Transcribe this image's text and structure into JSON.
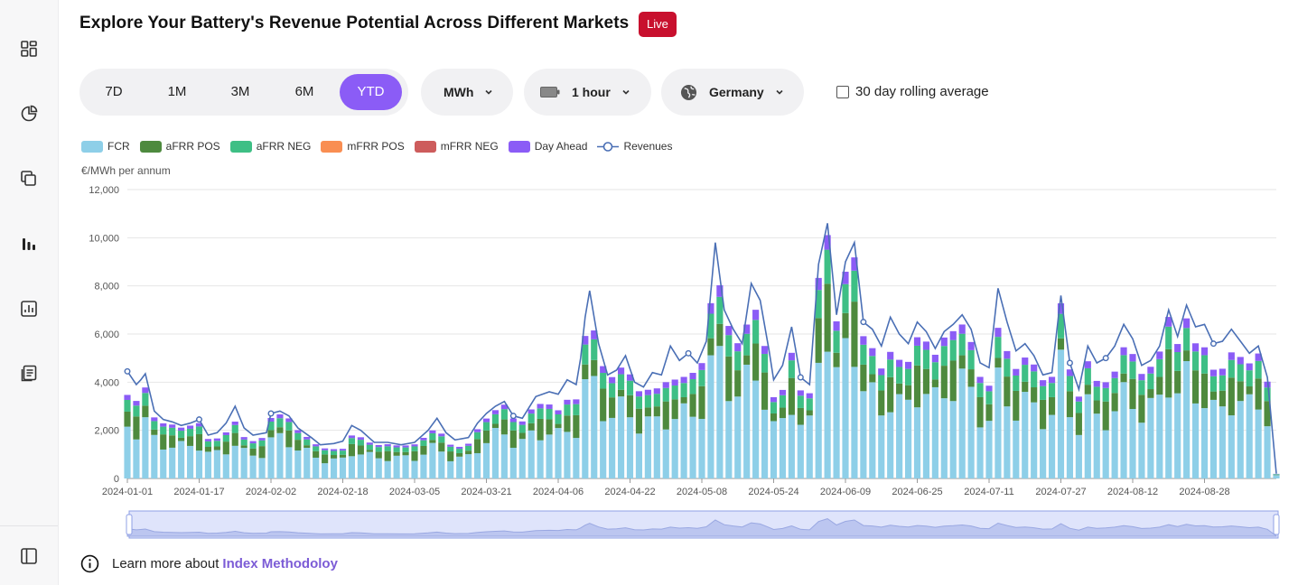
{
  "page": {
    "title": "Explore Your Battery's Revenue Potential Across Different Markets",
    "badge": "Live"
  },
  "sidebar": {
    "icons": [
      "grid-icon",
      "pie-chart-icon",
      "layers-icon",
      "bar-chart-icon",
      "chart-report-icon",
      "documents-icon",
      "panel-toggle-icon"
    ]
  },
  "controls": {
    "ranges": [
      "7D",
      "1M",
      "3M",
      "6M",
      "YTD"
    ],
    "active_range": "YTD",
    "unit": "MWh",
    "duration": "1 hour",
    "country": "Germany",
    "rolling_label": "30 day rolling average",
    "rolling_checked": false
  },
  "info": {
    "text": "Learn more about",
    "link": "Index Methodoloy"
  },
  "colors": {
    "FCR": "#8ecfe8",
    "aFRR POS": "#4e8a3e",
    "aFRR NEG": "#3ebf85",
    "mFRR POS": "#f98e52",
    "mFRR NEG": "#cd5c5c",
    "Day Ahead": "#8b5cf6",
    "Revenues": "#4a6fb5",
    "active": "#8b5cf6",
    "badge": "#c8102e"
  },
  "chart_data": {
    "type": "bar",
    "stacked": true,
    "ylabel": "€/MWh per annum",
    "ylim": [
      0,
      12000
    ],
    "yticks": [
      0,
      2000,
      4000,
      6000,
      8000,
      10000,
      12000
    ],
    "ytick_labels": [
      "0",
      "2,000",
      "4,000",
      "6,000",
      "8,000",
      "10,000",
      "12,000"
    ],
    "xticks": [
      "2024-01-01",
      "2024-01-17",
      "2024-02-02",
      "2024-02-18",
      "2024-03-05",
      "2024-03-21",
      "2024-04-06",
      "2024-04-22",
      "2024-05-08",
      "2024-05-24",
      "2024-06-09",
      "2024-06-25",
      "2024-07-11",
      "2024-07-27",
      "2024-08-12",
      "2024-08-28"
    ],
    "x_start": "2024-01-01",
    "x_end": "2024-09-13",
    "legend": [
      "FCR",
      "aFRR POS",
      "aFRR NEG",
      "mFRR POS",
      "mFRR NEG",
      "Day Ahead",
      "Revenues"
    ],
    "legend_position": "top-left",
    "grid": true,
    "revenues_line": {
      "name": "Revenues",
      "points": [
        [
          "2024-01-01",
          4450
        ],
        [
          "2024-01-03",
          3900
        ],
        [
          "2024-01-04",
          4100
        ],
        [
          "2024-01-05",
          4350
        ],
        [
          "2024-01-07",
          2800
        ],
        [
          "2024-01-09",
          2450
        ],
        [
          "2024-01-11",
          2350
        ],
        [
          "2024-01-13",
          2200
        ],
        [
          "2024-01-15",
          2300
        ],
        [
          "2024-01-17",
          2450
        ],
        [
          "2024-01-19",
          1800
        ],
        [
          "2024-01-21",
          1900
        ],
        [
          "2024-01-23",
          2300
        ],
        [
          "2024-01-25",
          3000
        ],
        [
          "2024-01-27",
          2100
        ],
        [
          "2024-01-29",
          1800
        ],
        [
          "2024-02-01",
          1900
        ],
        [
          "2024-02-02",
          2700
        ],
        [
          "2024-02-04",
          2800
        ],
        [
          "2024-02-06",
          2600
        ],
        [
          "2024-02-08",
          2100
        ],
        [
          "2024-02-11",
          1700
        ],
        [
          "2024-02-13",
          1400
        ],
        [
          "2024-02-16",
          1450
        ],
        [
          "2024-02-18",
          1550
        ],
        [
          "2024-02-20",
          2200
        ],
        [
          "2024-02-22",
          2000
        ],
        [
          "2024-02-25",
          1500
        ],
        [
          "2024-02-28",
          1500
        ],
        [
          "2024-03-02",
          1400
        ],
        [
          "2024-03-05",
          1500
        ],
        [
          "2024-03-08",
          2000
        ],
        [
          "2024-03-10",
          2500
        ],
        [
          "2024-03-12",
          1900
        ],
        [
          "2024-03-14",
          1600
        ],
        [
          "2024-03-17",
          1700
        ],
        [
          "2024-03-19",
          2300
        ],
        [
          "2024-03-21",
          2700
        ],
        [
          "2024-03-23",
          3000
        ],
        [
          "2024-03-25",
          3200
        ],
        [
          "2024-03-27",
          2600
        ],
        [
          "2024-03-29",
          2500
        ],
        [
          "2024-04-01",
          3400
        ],
        [
          "2024-04-04",
          3600
        ],
        [
          "2024-04-06",
          3500
        ],
        [
          "2024-04-08",
          4100
        ],
        [
          "2024-04-10",
          3900
        ],
        [
          "2024-04-11",
          5000
        ],
        [
          "2024-04-12",
          6700
        ],
        [
          "2024-04-13",
          7800
        ],
        [
          "2024-04-15",
          5600
        ],
        [
          "2024-04-17",
          4300
        ],
        [
          "2024-04-19",
          4500
        ],
        [
          "2024-04-21",
          5100
        ],
        [
          "2024-04-23",
          4000
        ],
        [
          "2024-04-25",
          3800
        ],
        [
          "2024-04-27",
          4400
        ],
        [
          "2024-04-29",
          4300
        ],
        [
          "2024-05-01",
          5500
        ],
        [
          "2024-05-03",
          4900
        ],
        [
          "2024-05-05",
          5200
        ],
        [
          "2024-05-07",
          4800
        ],
        [
          "2024-05-09",
          5700
        ],
        [
          "2024-05-11",
          9800
        ],
        [
          "2024-05-13",
          7000
        ],
        [
          "2024-05-15",
          6200
        ],
        [
          "2024-05-17",
          5600
        ],
        [
          "2024-05-19",
          8100
        ],
        [
          "2024-05-21",
          7400
        ],
        [
          "2024-05-23",
          5300
        ],
        [
          "2024-05-24",
          4100
        ],
        [
          "2024-05-26",
          4700
        ],
        [
          "2024-05-28",
          6300
        ],
        [
          "2024-05-30",
          4200
        ],
        [
          "2024-06-01",
          3900
        ],
        [
          "2024-06-03",
          8900
        ],
        [
          "2024-06-05",
          10600
        ],
        [
          "2024-06-07",
          6800
        ],
        [
          "2024-06-09",
          9000
        ],
        [
          "2024-06-11",
          9800
        ],
        [
          "2024-06-13",
          6500
        ],
        [
          "2024-06-15",
          6200
        ],
        [
          "2024-06-17",
          5500
        ],
        [
          "2024-06-19",
          6700
        ],
        [
          "2024-06-21",
          6000
        ],
        [
          "2024-06-23",
          5600
        ],
        [
          "2024-06-25",
          6500
        ],
        [
          "2024-06-27",
          6100
        ],
        [
          "2024-06-29",
          5400
        ],
        [
          "2024-07-01",
          6100
        ],
        [
          "2024-07-03",
          6400
        ],
        [
          "2024-07-05",
          6800
        ],
        [
          "2024-07-07",
          6200
        ],
        [
          "2024-07-09",
          4800
        ],
        [
          "2024-07-11",
          4600
        ],
        [
          "2024-07-13",
          7900
        ],
        [
          "2024-07-15",
          6500
        ],
        [
          "2024-07-17",
          5300
        ],
        [
          "2024-07-19",
          5600
        ],
        [
          "2024-07-21",
          5100
        ],
        [
          "2024-07-23",
          4300
        ],
        [
          "2024-07-25",
          4400
        ],
        [
          "2024-07-27",
          7600
        ],
        [
          "2024-07-29",
          4800
        ],
        [
          "2024-07-31",
          3700
        ],
        [
          "2024-08-02",
          5500
        ],
        [
          "2024-08-04",
          4800
        ],
        [
          "2024-08-06",
          5000
        ],
        [
          "2024-08-08",
          5500
        ],
        [
          "2024-08-10",
          6400
        ],
        [
          "2024-08-12",
          5800
        ],
        [
          "2024-08-14",
          4700
        ],
        [
          "2024-08-16",
          4900
        ],
        [
          "2024-08-18",
          5500
        ],
        [
          "2024-08-20",
          7000
        ],
        [
          "2024-08-22",
          5900
        ],
        [
          "2024-08-24",
          7200
        ],
        [
          "2024-08-26",
          6300
        ],
        [
          "2024-08-28",
          6400
        ],
        [
          "2024-08-30",
          5600
        ],
        [
          "2024-09-01",
          5700
        ],
        [
          "2024-09-03",
          6200
        ],
        [
          "2024-09-05",
          5700
        ],
        [
          "2024-09-07",
          5200
        ],
        [
          "2024-09-09",
          5500
        ],
        [
          "2024-09-11",
          4200
        ],
        [
          "2024-09-13",
          200
        ]
      ]
    },
    "bar_composition": {
      "FCR": 0.62,
      "aFRR POS": 0.18,
      "aFRR NEG": 0.14,
      "Day Ahead": 0.06
    },
    "brush": true
  }
}
